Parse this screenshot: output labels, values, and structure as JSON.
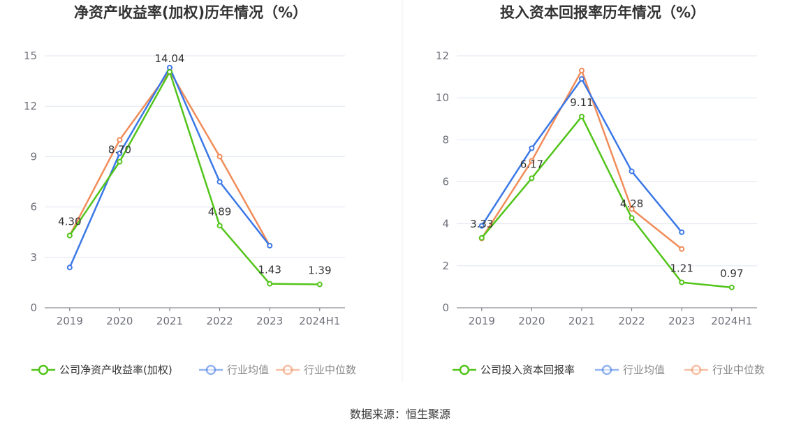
{
  "source": "数据来源：恒生聚源",
  "chart_data": [
    {
      "type": "line",
      "title": "净资产收益率(加权)历年情况（%）",
      "categories": [
        "2019",
        "2020",
        "2021",
        "2022",
        "2023",
        "2024H1"
      ],
      "ylim": [
        0,
        15
      ],
      "yticks": [
        "0",
        "3",
        "6",
        "9",
        "12",
        "15"
      ],
      "grid": true,
      "legend_position": "bottom",
      "series": [
        {
          "name": "公司净资产收益率(加权)",
          "color": "#52c41a",
          "values": [
            4.3,
            8.7,
            14.04,
            4.89,
            1.43,
            1.39
          ],
          "labels": [
            "4.30",
            "8.70",
            "14.04",
            "4.89",
            "1.43",
            "1.39"
          ]
        },
        {
          "name": "行业均值",
          "color": "#3b78e7",
          "values": [
            2.4,
            9.2,
            14.3,
            7.5,
            3.7,
            null
          ]
        },
        {
          "name": "行业中位数",
          "color": "#f08c5a",
          "values": [
            4.3,
            10.0,
            14.1,
            9.0,
            3.7,
            null
          ]
        }
      ]
    },
    {
      "type": "line",
      "title": "投入资本回报率历年情况（%）",
      "categories": [
        "2019",
        "2020",
        "2021",
        "2022",
        "2023",
        "2024H1"
      ],
      "ylim": [
        0,
        12
      ],
      "yticks": [
        "0",
        "2",
        "4",
        "6",
        "8",
        "10",
        "12"
      ],
      "grid": true,
      "legend_position": "bottom",
      "series": [
        {
          "name": "公司投入资本回报率",
          "color": "#52c41a",
          "values": [
            3.33,
            6.17,
            9.11,
            4.28,
            1.21,
            0.97
          ],
          "labels": [
            "3.33",
            "6.17",
            "9.11",
            "4.28",
            "1.21",
            "0.97"
          ]
        },
        {
          "name": "行业均值",
          "color": "#3b78e7",
          "values": [
            3.9,
            7.6,
            10.9,
            6.5,
            3.6,
            null
          ]
        },
        {
          "name": "行业中位数",
          "color": "#f08c5a",
          "values": [
            3.3,
            7.0,
            11.3,
            4.7,
            2.8,
            null
          ]
        }
      ]
    }
  ]
}
